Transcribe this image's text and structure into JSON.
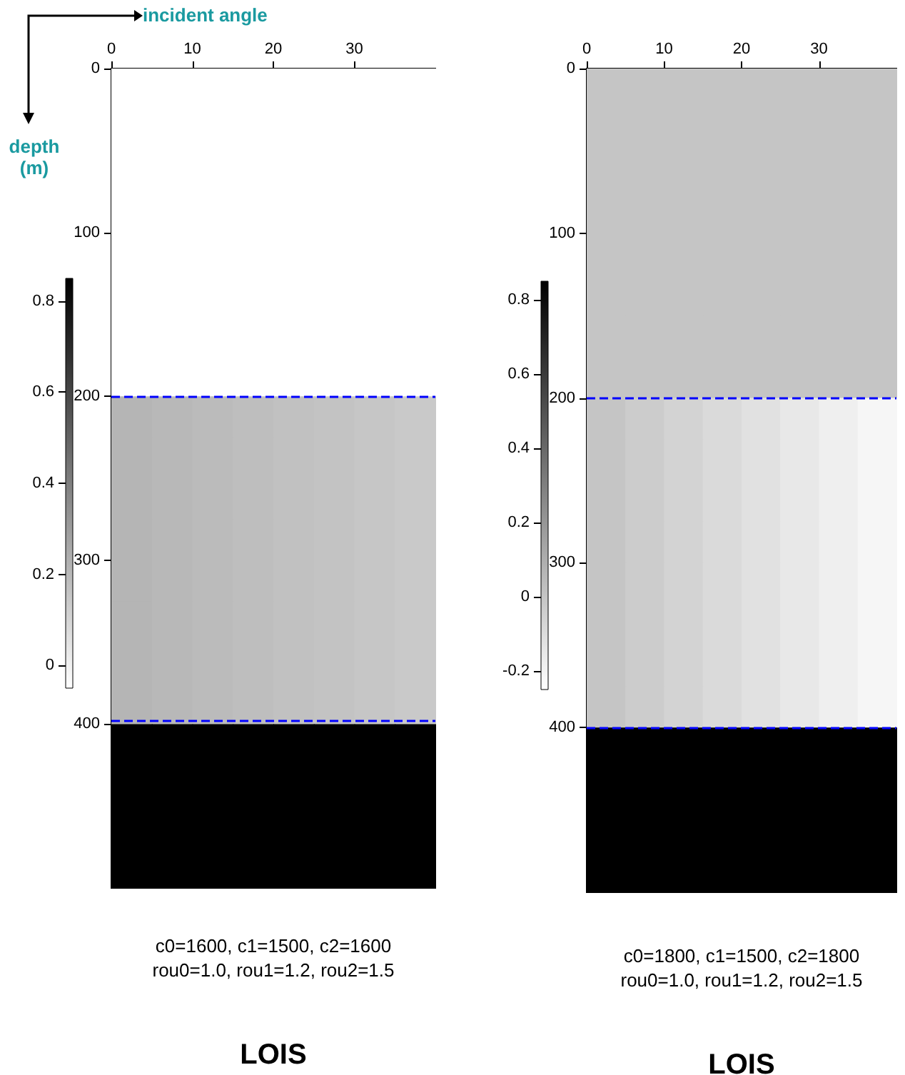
{
  "chart_data": [
    {
      "type": "heatmap",
      "xlabel": "incident angle",
      "ylabel": "depth\n(m)",
      "xlim": [
        0,
        40
      ],
      "xticks": [
        0,
        10,
        20,
        30
      ],
      "ylim": [
        500,
        0
      ],
      "yticks": [
        0,
        100,
        200,
        300,
        400
      ],
      "clim": [
        -0.05,
        0.85
      ],
      "cticks": [
        0,
        0.2,
        0.4,
        0.6,
        0.8
      ],
      "cells": [
        [
          -0.05,
          -0.05,
          -0.05,
          -0.05,
          -0.05,
          -0.05,
          -0.05,
          -0.05
        ],
        [
          -0.05,
          -0.05,
          -0.05,
          -0.05,
          -0.05,
          -0.05,
          -0.05,
          -0.05
        ],
        [
          -0.05,
          -0.05,
          -0.05,
          -0.05,
          -0.05,
          -0.05,
          -0.05,
          -0.05
        ],
        [
          -0.05,
          -0.05,
          -0.05,
          -0.05,
          -0.05,
          -0.05,
          -0.05,
          -0.05
        ],
        [
          -0.05,
          -0.05,
          -0.05,
          -0.05,
          -0.05,
          -0.05,
          -0.05,
          -0.05
        ],
        [
          -0.05,
          -0.05,
          -0.05,
          -0.05,
          -0.05,
          -0.05,
          -0.05,
          -0.05
        ],
        [
          -0.05,
          -0.05,
          -0.05,
          -0.05,
          -0.05,
          -0.05,
          -0.05,
          -0.05
        ],
        [
          -0.05,
          -0.05,
          -0.05,
          -0.05,
          -0.05,
          -0.05,
          -0.05,
          -0.05
        ],
        [
          0.21,
          0.2,
          0.19,
          0.18,
          0.17,
          0.16,
          0.15,
          0.14
        ],
        [
          0.21,
          0.2,
          0.19,
          0.18,
          0.17,
          0.16,
          0.15,
          0.14
        ],
        [
          0.21,
          0.2,
          0.19,
          0.18,
          0.17,
          0.16,
          0.15,
          0.14
        ],
        [
          0.21,
          0.2,
          0.19,
          0.18,
          0.17,
          0.16,
          0.15,
          0.14
        ],
        [
          0.21,
          0.2,
          0.19,
          0.18,
          0.17,
          0.16,
          0.15,
          0.14
        ],
        [
          0.21,
          0.2,
          0.19,
          0.18,
          0.17,
          0.16,
          0.15,
          0.14
        ],
        [
          0.21,
          0.2,
          0.19,
          0.18,
          0.17,
          0.16,
          0.15,
          0.14
        ],
        [
          0.21,
          0.2,
          0.19,
          0.18,
          0.17,
          0.16,
          0.15,
          0.14
        ],
        [
          0.85,
          0.85,
          0.85,
          0.85,
          0.85,
          0.85,
          0.85,
          0.85
        ],
        [
          0.85,
          0.85,
          0.85,
          0.85,
          0.85,
          0.85,
          0.85,
          0.85
        ],
        [
          0.85,
          0.85,
          0.85,
          0.85,
          0.85,
          0.85,
          0.85,
          0.85
        ],
        [
          0.85,
          0.85,
          0.85,
          0.85,
          0.85,
          0.85,
          0.85,
          0.85
        ]
      ],
      "ref_lines": [
        {
          "axis": "y",
          "value": 200,
          "color": "#0000ff",
          "line_style": "dashed"
        },
        {
          "axis": "y",
          "value": 398,
          "color": "#0000ff",
          "line_style": "dashed"
        }
      ],
      "annotations": [
        "c0=1600, c1=1500, c2=1600",
        "rou0=1.0, rou1=1.2, rou2=1.5",
        "LOIS"
      ]
    },
    {
      "type": "heatmap",
      "xlim": [
        0,
        40
      ],
      "xticks": [
        0,
        10,
        20,
        30
      ],
      "ylim": [
        500,
        0
      ],
      "yticks": [
        0,
        100,
        200,
        300,
        400
      ],
      "clim": [
        -0.25,
        0.85
      ],
      "cticks": [
        -0.2,
        0,
        0.2,
        0.4,
        0.6,
        0.8
      ],
      "cells": [
        [
          0,
          0,
          0,
          0,
          0,
          0,
          0,
          0
        ],
        [
          0,
          0,
          0,
          0,
          0,
          0,
          0,
          0
        ],
        [
          0,
          0,
          0,
          0,
          0,
          0,
          0,
          0
        ],
        [
          0,
          0,
          0,
          0,
          0,
          0,
          0,
          0
        ],
        [
          0,
          0,
          0,
          0,
          0,
          0,
          0,
          0
        ],
        [
          0,
          0,
          0,
          0,
          0,
          0,
          0,
          0
        ],
        [
          0,
          0,
          0,
          0,
          0,
          0,
          0,
          0
        ],
        [
          0,
          0,
          0,
          0,
          0,
          0,
          0,
          0
        ],
        [
          0,
          -0.03,
          -0.06,
          -0.09,
          -0.12,
          -0.15,
          -0.18,
          -0.21
        ],
        [
          0,
          -0.03,
          -0.06,
          -0.09,
          -0.12,
          -0.15,
          -0.18,
          -0.21
        ],
        [
          0,
          -0.03,
          -0.06,
          -0.09,
          -0.12,
          -0.15,
          -0.18,
          -0.21
        ],
        [
          0,
          -0.03,
          -0.06,
          -0.09,
          -0.12,
          -0.15,
          -0.18,
          -0.21
        ],
        [
          0,
          -0.03,
          -0.06,
          -0.09,
          -0.12,
          -0.15,
          -0.18,
          -0.21
        ],
        [
          0,
          -0.03,
          -0.06,
          -0.09,
          -0.12,
          -0.15,
          -0.18,
          -0.21
        ],
        [
          0,
          -0.03,
          -0.06,
          -0.09,
          -0.12,
          -0.15,
          -0.18,
          -0.21
        ],
        [
          0,
          -0.03,
          -0.06,
          -0.09,
          -0.12,
          -0.15,
          -0.18,
          -0.21
        ],
        [
          0.85,
          0.85,
          0.85,
          0.85,
          0.85,
          0.85,
          0.85,
          0.85
        ],
        [
          0.85,
          0.85,
          0.85,
          0.85,
          0.85,
          0.85,
          0.85,
          0.85
        ],
        [
          0.85,
          0.85,
          0.85,
          0.85,
          0.85,
          0.85,
          0.85,
          0.85
        ],
        [
          0.85,
          0.85,
          0.85,
          0.85,
          0.85,
          0.85,
          0.85,
          0.85
        ]
      ],
      "ref_lines": [
        {
          "axis": "y",
          "value": 200,
          "color": "#0000ff",
          "line_style": "dashed"
        },
        {
          "axis": "y",
          "value": 400,
          "color": "#0000ff",
          "line_style": "dashed"
        }
      ],
      "annotations": [
        "c0=1800, c1=1500, c2=1800",
        "rou0=1.0, rou1=1.2, rou2=1.5",
        "LOIS"
      ]
    }
  ]
}
